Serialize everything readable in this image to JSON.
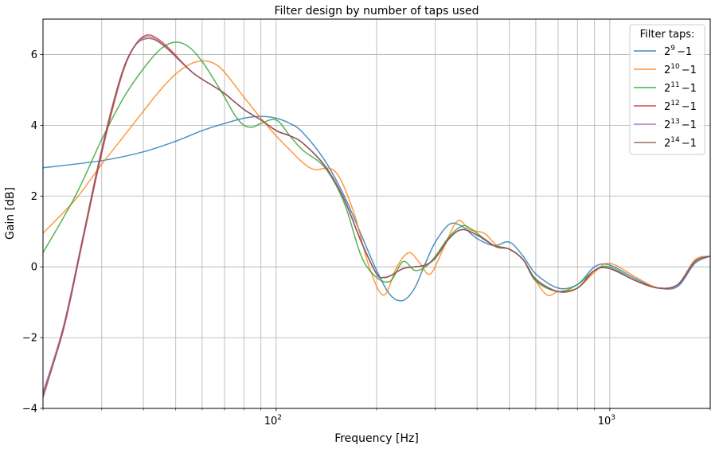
{
  "chart_data": {
    "type": "line",
    "title": "Filter design by number of taps used",
    "xlabel": "Frequency [Hz]",
    "ylabel": "Gain [dB]",
    "xscale": "log",
    "xlim": [
      20,
      2000
    ],
    "ylim": [
      -4,
      7
    ],
    "grid": true,
    "x_ticks": [
      {
        "value": 100,
        "base": "10",
        "exp": "2"
      },
      {
        "value": 1000,
        "base": "10",
        "exp": "3"
      }
    ],
    "y_ticks": [
      {
        "value": -4,
        "label": "−4"
      },
      {
        "value": -2,
        "label": "−2"
      },
      {
        "value": 0,
        "label": "0"
      },
      {
        "value": 2,
        "label": "2"
      },
      {
        "value": 4,
        "label": "4"
      },
      {
        "value": 6,
        "label": "6"
      }
    ],
    "legend": {
      "title": "Filter taps:",
      "placement": "top-right"
    },
    "series": [
      {
        "base": "2",
        "exp": "9",
        "suffix": "−1",
        "color": "#1f77b4",
        "x": [
          20,
          30,
          40,
          50,
          60,
          70,
          80,
          90,
          100,
          110,
          120,
          140,
          160,
          180,
          200,
          220,
          240,
          260,
          280,
          300,
          330,
          360,
          400,
          450,
          500,
          550,
          600,
          700,
          800,
          900,
          1000,
          1200,
          1400,
          1600,
          1800,
          2000
        ],
        "y": [
          2.8,
          3.0,
          3.25,
          3.55,
          3.85,
          4.05,
          4.2,
          4.25,
          4.2,
          4.05,
          3.8,
          3.0,
          2.0,
          0.9,
          -0.1,
          -0.8,
          -0.95,
          -0.6,
          0.1,
          0.7,
          1.2,
          1.15,
          0.8,
          0.6,
          0.7,
          0.3,
          -0.2,
          -0.6,
          -0.5,
          0.0,
          0.05,
          -0.35,
          -0.6,
          -0.55,
          0.1,
          0.3
        ]
      },
      {
        "base": "2",
        "exp": "10",
        "suffix": "−1",
        "color": "#ff7f0e",
        "x": [
          20,
          25,
          30,
          35,
          40,
          45,
          50,
          55,
          60,
          65,
          70,
          80,
          90,
          100,
          110,
          120,
          130,
          150,
          170,
          190,
          210,
          230,
          250,
          270,
          290,
          320,
          350,
          380,
          420,
          460,
          500,
          550,
          600,
          650,
          700,
          800,
          900,
          1000,
          1200,
          1400,
          1600,
          1800,
          2000
        ],
        "y": [
          0.95,
          1.9,
          2.9,
          3.7,
          4.4,
          5.0,
          5.45,
          5.72,
          5.82,
          5.75,
          5.5,
          4.8,
          4.2,
          3.7,
          3.3,
          2.95,
          2.75,
          2.7,
          1.6,
          0.0,
          -0.8,
          0.0,
          0.4,
          0.1,
          -0.2,
          0.6,
          1.3,
          1.05,
          0.95,
          0.6,
          0.5,
          0.2,
          -0.4,
          -0.8,
          -0.7,
          -0.6,
          -0.15,
          0.1,
          -0.3,
          -0.6,
          -0.5,
          0.2,
          0.3
        ]
      },
      {
        "base": "2",
        "exp": "11",
        "suffix": "−1",
        "color": "#2ca02c",
        "x": [
          20,
          25,
          30,
          35,
          40,
          45,
          50,
          55,
          60,
          65,
          70,
          75,
          80,
          85,
          90,
          100,
          110,
          120,
          140,
          160,
          180,
          200,
          220,
          240,
          260,
          280,
          300,
          330,
          360,
          380,
          420,
          460,
          500,
          550,
          600,
          700,
          800,
          900,
          1000,
          1200,
          1400,
          1600,
          1800,
          2000
        ],
        "y": [
          0.4,
          2.0,
          3.6,
          4.8,
          5.6,
          6.15,
          6.35,
          6.2,
          5.8,
          5.3,
          4.8,
          4.3,
          4.0,
          3.95,
          4.05,
          4.15,
          3.7,
          3.3,
          2.8,
          1.8,
          0.3,
          -0.3,
          -0.4,
          0.15,
          -0.1,
          0.0,
          0.3,
          0.85,
          1.15,
          1.1,
          0.8,
          0.55,
          0.5,
          0.2,
          -0.4,
          -0.7,
          -0.5,
          -0.1,
          0.0,
          -0.4,
          -0.6,
          -0.5,
          0.15,
          0.3
        ]
      },
      {
        "base": "2",
        "exp": "12",
        "suffix": "−1",
        "color": "#d62728",
        "x": [
          20,
          23,
          26,
          29,
          32,
          35,
          38,
          41,
          44,
          48,
          52,
          56,
          60,
          65,
          70,
          80,
          90,
          100,
          110,
          120,
          140,
          160,
          180,
          200,
          210,
          220,
          240,
          260,
          280,
          300,
          330,
          360,
          400,
          450,
          500,
          550,
          600,
          700,
          800,
          900,
          1000,
          1200,
          1400,
          1600,
          1800,
          2000
        ],
        "y": [
          -3.6,
          -1.8,
          0.5,
          2.6,
          4.3,
          5.6,
          6.3,
          6.55,
          6.45,
          6.15,
          5.8,
          5.5,
          5.3,
          5.1,
          4.9,
          4.45,
          4.15,
          3.85,
          3.7,
          3.5,
          2.85,
          1.9,
          0.7,
          -0.2,
          -0.3,
          -0.25,
          -0.05,
          0.0,
          0.05,
          0.25,
          0.8,
          1.05,
          0.9,
          0.6,
          0.5,
          0.2,
          -0.35,
          -0.7,
          -0.6,
          -0.1,
          -0.05,
          -0.4,
          -0.6,
          -0.5,
          0.15,
          0.3
        ]
      },
      {
        "base": "2",
        "exp": "13",
        "suffix": "−1",
        "color": "#9467bd",
        "x": [
          20,
          23,
          26,
          29,
          32,
          35,
          38,
          41,
          44,
          48,
          52,
          56,
          60,
          65,
          70,
          80,
          90,
          100,
          110,
          120,
          140,
          160,
          180,
          200,
          210,
          220,
          240,
          260,
          280,
          300,
          330,
          360,
          400,
          450,
          500,
          550,
          600,
          700,
          800,
          900,
          1000,
          1200,
          1400,
          1600,
          1800,
          2000
        ],
        "y": [
          -3.55,
          -1.7,
          0.6,
          2.7,
          4.4,
          5.65,
          6.3,
          6.5,
          6.4,
          6.1,
          5.78,
          5.5,
          5.3,
          5.1,
          4.9,
          4.45,
          4.15,
          3.85,
          3.7,
          3.5,
          2.85,
          1.9,
          0.7,
          -0.2,
          -0.3,
          -0.25,
          -0.05,
          0.0,
          0.05,
          0.25,
          0.8,
          1.05,
          0.9,
          0.6,
          0.5,
          0.2,
          -0.35,
          -0.7,
          -0.6,
          -0.1,
          -0.05,
          -0.4,
          -0.6,
          -0.5,
          0.15,
          0.3
        ]
      },
      {
        "base": "2",
        "exp": "14",
        "suffix": "−1",
        "color": "#8c564b",
        "x": [
          20,
          23,
          26,
          29,
          32,
          35,
          38,
          41,
          44,
          48,
          52,
          56,
          60,
          65,
          70,
          80,
          90,
          100,
          110,
          120,
          140,
          160,
          180,
          200,
          210,
          220,
          240,
          260,
          280,
          300,
          330,
          360,
          400,
          450,
          500,
          550,
          600,
          700,
          800,
          900,
          1000,
          1200,
          1400,
          1600,
          1800,
          2000
        ],
        "y": [
          -3.7,
          -1.75,
          0.55,
          2.7,
          4.4,
          5.65,
          6.28,
          6.45,
          6.38,
          6.1,
          5.78,
          5.5,
          5.3,
          5.1,
          4.9,
          4.45,
          4.15,
          3.85,
          3.7,
          3.5,
          2.85,
          1.9,
          0.7,
          -0.2,
          -0.3,
          -0.25,
          -0.05,
          0.0,
          0.05,
          0.25,
          0.8,
          1.05,
          0.9,
          0.6,
          0.5,
          0.2,
          -0.35,
          -0.7,
          -0.6,
          -0.1,
          -0.05,
          -0.4,
          -0.6,
          -0.5,
          0.15,
          0.3
        ]
      }
    ]
  }
}
